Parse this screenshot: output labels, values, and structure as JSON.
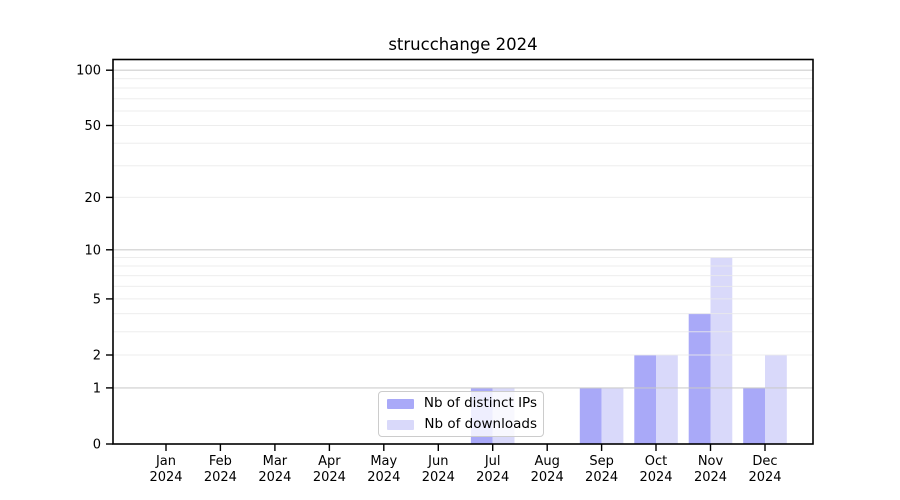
{
  "title": "strucchange 2024",
  "chart_data": {
    "type": "bar",
    "title": "strucchange 2024",
    "categories": [
      "Jan",
      "Feb",
      "Mar",
      "Apr",
      "May",
      "Jun",
      "Jul",
      "Aug",
      "Sep",
      "Oct",
      "Nov",
      "Dec"
    ],
    "year": "2024",
    "series": [
      {
        "name": "Nb of distinct IPs",
        "color": "#a9a9f8",
        "values": [
          0,
          0,
          0,
          0,
          0,
          0,
          1,
          0,
          1,
          2,
          4,
          1
        ]
      },
      {
        "name": "Nb of downloads",
        "color": "#d9d9fa",
        "values": [
          0,
          0,
          0,
          0,
          0,
          0,
          1,
          0,
          1,
          2,
          9,
          2
        ]
      }
    ],
    "y_axis": {
      "scale": "log1p",
      "tick_labels": [
        "0",
        "1",
        "2",
        "5",
        "10",
        "20",
        "50",
        "100"
      ],
      "tick_values": [
        0,
        1,
        2,
        5,
        10,
        20,
        50,
        100
      ],
      "major_gridlines": [
        1,
        10,
        100
      ],
      "minor_gridlines": [
        2,
        3,
        4,
        5,
        6,
        7,
        8,
        9,
        20,
        30,
        40,
        50,
        60,
        70,
        80,
        90
      ],
      "range": [
        0,
        114
      ]
    },
    "legend": {
      "position": "lower center"
    },
    "grid": true,
    "colors": {
      "background": "#ffffff",
      "bar_distinct_ips": "#a9a9f8",
      "bar_downloads": "#d9d9fa",
      "major_grid": "#c9c9c9",
      "minor_grid": "#eaeaea",
      "axis": "#000000",
      "text": "#000000",
      "legend_border": "#cccccc"
    }
  }
}
